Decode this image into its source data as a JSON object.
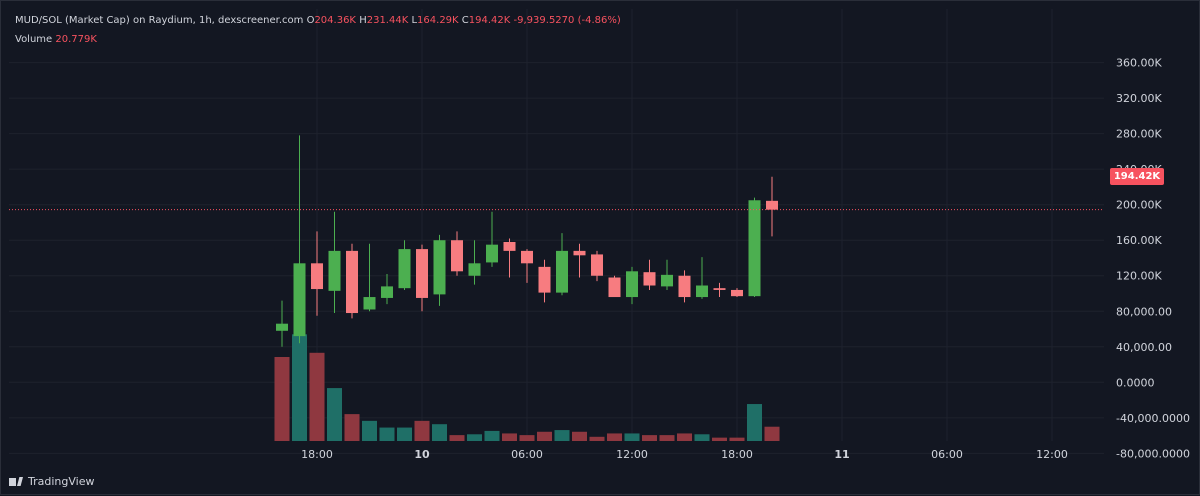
{
  "legend": {
    "symbol": "MUD/SOL (Market Cap) on Raydium, 1h, dexscreener.com",
    "o_label": "O",
    "o_value": "204.36K",
    "h_label": "H",
    "h_value": "231.44K",
    "l_label": "L",
    "l_value": "164.29K",
    "c_label": "C",
    "c_value": "194.42K",
    "change": "-9,939.5270 (-4.86%)",
    "volume_label": "Volume",
    "volume_value": "20.779K"
  },
  "price_tag": "194.42K",
  "brand": "TradingView",
  "colors": {
    "up": "#26a69a",
    "down": "#ef5350",
    "background": "#131722",
    "grid": "#1e222d"
  },
  "chart_data": {
    "type": "candlestick",
    "title": "MUD/SOL (Market Cap) on Raydium, 1h, dexscreener.com",
    "interval": "1h",
    "y_axis": {
      "range": [
        -110000,
        375000
      ],
      "ticks": [
        360000,
        320000,
        280000,
        240000,
        200000,
        160000,
        120000,
        80000,
        40000,
        0,
        -40000,
        -80000
      ],
      "tick_labels": [
        "360.00K",
        "320.00K",
        "280.00K",
        "240.00K",
        "200.00K",
        "160.00K",
        "120.00K",
        "80,000.00",
        "40,000.00",
        "0.0000",
        "-40,000.0000",
        "-80,000.0000"
      ]
    },
    "x_axis": {
      "tick_labels": [
        "18:00",
        "10",
        "06:00",
        "12:00",
        "18:00",
        "11",
        "06:00",
        "12:00"
      ],
      "tick_hours": [
        18,
        24,
        30,
        36,
        42,
        48,
        54,
        60
      ]
    },
    "last_price": 194420,
    "candles": [
      {
        "t": 16,
        "o": 58000,
        "h": 92000,
        "l": 40000,
        "c": 66000
      },
      {
        "t": 17,
        "o": 52000,
        "h": 278000,
        "l": 44000,
        "c": 134000
      },
      {
        "t": 18,
        "o": 134000,
        "h": 170000,
        "l": 75000,
        "c": 105000
      },
      {
        "t": 19,
        "o": 103000,
        "h": 192000,
        "l": 78000,
        "c": 148000
      },
      {
        "t": 20,
        "o": 148000,
        "h": 156000,
        "l": 72000,
        "c": 78000
      },
      {
        "t": 21,
        "o": 82000,
        "h": 156000,
        "l": 80000,
        "c": 96000
      },
      {
        "t": 22,
        "o": 95000,
        "h": 122000,
        "l": 88000,
        "c": 108000
      },
      {
        "t": 23,
        "o": 106000,
        "h": 160000,
        "l": 104000,
        "c": 150000
      },
      {
        "t": 24,
        "o": 150000,
        "h": 155000,
        "l": 80000,
        "c": 95000
      },
      {
        "t": 25,
        "o": 99000,
        "h": 166000,
        "l": 86000,
        "c": 160000
      },
      {
        "t": 26,
        "o": 160000,
        "h": 170000,
        "l": 120000,
        "c": 125000
      },
      {
        "t": 27,
        "o": 120000,
        "h": 160000,
        "l": 110000,
        "c": 134000
      },
      {
        "t": 28,
        "o": 135000,
        "h": 192000,
        "l": 130000,
        "c": 155000
      },
      {
        "t": 29,
        "o": 158000,
        "h": 162000,
        "l": 118000,
        "c": 148000
      },
      {
        "t": 30,
        "o": 148000,
        "h": 150000,
        "l": 112000,
        "c": 134000
      },
      {
        "t": 31,
        "o": 130000,
        "h": 138000,
        "l": 90000,
        "c": 101000
      },
      {
        "t": 32,
        "o": 101000,
        "h": 168000,
        "l": 98000,
        "c": 148000
      },
      {
        "t": 33,
        "o": 148000,
        "h": 156000,
        "l": 118000,
        "c": 143000
      },
      {
        "t": 34,
        "o": 144000,
        "h": 148000,
        "l": 114000,
        "c": 120000
      },
      {
        "t": 35,
        "o": 118000,
        "h": 120000,
        "l": 96000,
        "c": 96000
      },
      {
        "t": 36,
        "o": 96000,
        "h": 130000,
        "l": 88000,
        "c": 125000
      },
      {
        "t": 37,
        "o": 124000,
        "h": 138000,
        "l": 104000,
        "c": 109000
      },
      {
        "t": 38,
        "o": 108000,
        "h": 138000,
        "l": 104000,
        "c": 121000
      },
      {
        "t": 39,
        "o": 120000,
        "h": 126000,
        "l": 90000,
        "c": 96000
      },
      {
        "t": 40,
        "o": 96000,
        "h": 141000,
        "l": 94000,
        "c": 109000
      },
      {
        "t": 41,
        "o": 106000,
        "h": 112000,
        "l": 96000,
        "c": 104000
      },
      {
        "t": 42,
        "o": 104000,
        "h": 106000,
        "l": 96000,
        "c": 97000
      },
      {
        "t": 43,
        "o": 97000,
        "h": 208000,
        "l": 96000,
        "c": 205000
      },
      {
        "t": 44,
        "o": 204360,
        "h": 231440,
        "l": 164290,
        "c": 194420
      }
    ],
    "volume": [
      {
        "t": 16,
        "v": 1.0,
        "dir": "down"
      },
      {
        "t": 17,
        "v": 1.27,
        "dir": "up"
      },
      {
        "t": 18,
        "v": 1.05,
        "dir": "down"
      },
      {
        "t": 19,
        "v": 0.63,
        "dir": "up"
      },
      {
        "t": 20,
        "v": 0.32,
        "dir": "down"
      },
      {
        "t": 21,
        "v": 0.24,
        "dir": "up"
      },
      {
        "t": 22,
        "v": 0.16,
        "dir": "up"
      },
      {
        "t": 23,
        "v": 0.16,
        "dir": "up"
      },
      {
        "t": 24,
        "v": 0.24,
        "dir": "down"
      },
      {
        "t": 25,
        "v": 0.2,
        "dir": "up"
      },
      {
        "t": 26,
        "v": 0.07,
        "dir": "down"
      },
      {
        "t": 27,
        "v": 0.08,
        "dir": "up"
      },
      {
        "t": 28,
        "v": 0.12,
        "dir": "up"
      },
      {
        "t": 29,
        "v": 0.09,
        "dir": "down"
      },
      {
        "t": 30,
        "v": 0.07,
        "dir": "down"
      },
      {
        "t": 31,
        "v": 0.11,
        "dir": "down"
      },
      {
        "t": 32,
        "v": 0.13,
        "dir": "up"
      },
      {
        "t": 33,
        "v": 0.11,
        "dir": "down"
      },
      {
        "t": 34,
        "v": 0.05,
        "dir": "down"
      },
      {
        "t": 35,
        "v": 0.09,
        "dir": "down"
      },
      {
        "t": 36,
        "v": 0.09,
        "dir": "up"
      },
      {
        "t": 37,
        "v": 0.07,
        "dir": "down"
      },
      {
        "t": 38,
        "v": 0.07,
        "dir": "down"
      },
      {
        "t": 39,
        "v": 0.09,
        "dir": "down"
      },
      {
        "t": 40,
        "v": 0.08,
        "dir": "up"
      },
      {
        "t": 41,
        "v": 0.04,
        "dir": "down"
      },
      {
        "t": 42,
        "v": 0.04,
        "dir": "down"
      },
      {
        "t": 43,
        "v": 0.44,
        "dir": "up"
      },
      {
        "t": 44,
        "v": 0.17,
        "dir": "down"
      }
    ]
  }
}
